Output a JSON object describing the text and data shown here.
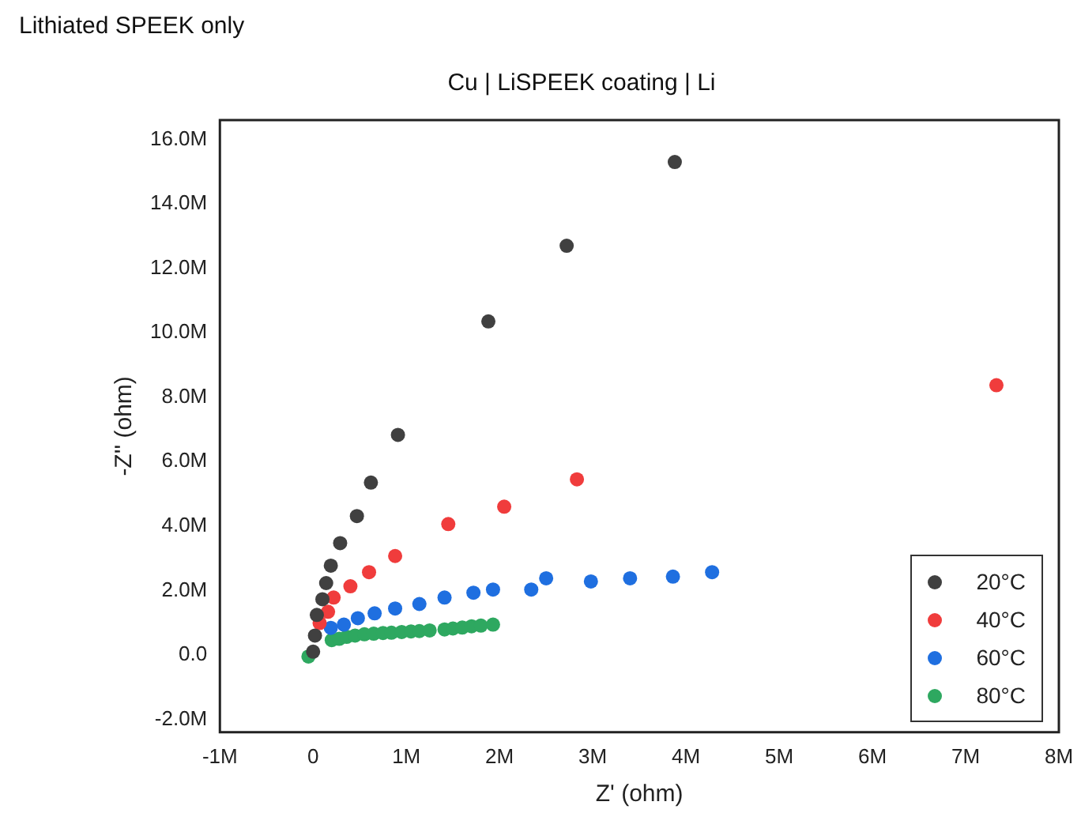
{
  "chart_data": {
    "type": "scatter",
    "title": "Cu | LiSPEEK coating | Li",
    "annotations": [
      "Lithiated SPEEK only"
    ],
    "xlabel": "Z' (ohm)",
    "ylabel": "-Z'' (ohm)",
    "xlim": [
      -1000000,
      8000000
    ],
    "ylim": [
      -2400000,
      16600000
    ],
    "xticks": [
      {
        "value": -1000000,
        "label": "-1M"
      },
      {
        "value": 0,
        "label": "0"
      },
      {
        "value": 1000000,
        "label": "1M"
      },
      {
        "value": 2000000,
        "label": "2M"
      },
      {
        "value": 3000000,
        "label": "3M"
      },
      {
        "value": 4000000,
        "label": "4M"
      },
      {
        "value": 5000000,
        "label": "5M"
      },
      {
        "value": 6000000,
        "label": "6M"
      },
      {
        "value": 7000000,
        "label": "7M"
      },
      {
        "value": 8000000,
        "label": "8M"
      }
    ],
    "yticks": [
      {
        "value": -2000000,
        "label": "-2.0M"
      },
      {
        "value": 0,
        "label": "0.0"
      },
      {
        "value": 2000000,
        "label": "2.0M"
      },
      {
        "value": 4000000,
        "label": "4.0M"
      },
      {
        "value": 6000000,
        "label": "6.0M"
      },
      {
        "value": 8000000,
        "label": "8.0M"
      },
      {
        "value": 10000000,
        "label": "10.0M"
      },
      {
        "value": 12000000,
        "label": "12.0M"
      },
      {
        "value": 14000000,
        "label": "14.0M"
      },
      {
        "value": 16000000,
        "label": "16.0M"
      }
    ],
    "grid": false,
    "legend": "bottom right",
    "marker": "circle",
    "series": [
      {
        "name": "20°C",
        "color": "#404040",
        "x": [
          0,
          20000,
          40000,
          100000,
          140000,
          190000,
          290000,
          470000,
          620000,
          910000,
          1880000,
          2720000,
          3880000
        ],
        "values": [
          100000,
          600000,
          1240000,
          1730000,
          2230000,
          2770000,
          3470000,
          4310000,
          5350000,
          6830000,
          10350000,
          12700000,
          15300000
        ]
      },
      {
        "name": "40°C",
        "color": "#f03c3c",
        "x": [
          70000,
          160000,
          220000,
          400000,
          600000,
          880000,
          1450000,
          2050000,
          2830000,
          7330000
        ],
        "values": [
          990000,
          1340000,
          1780000,
          2130000,
          2570000,
          3070000,
          4060000,
          4600000,
          5450000,
          8370000
        ]
      },
      {
        "name": "60°C",
        "color": "#1f6fe0",
        "x": [
          190000,
          330000,
          480000,
          660000,
          880000,
          1140000,
          1410000,
          1720000,
          1930000,
          2340000,
          2500000,
          2980000,
          3400000,
          3860000,
          4280000
        ],
        "values": [
          840000,
          940000,
          1140000,
          1290000,
          1440000,
          1580000,
          1780000,
          1930000,
          2030000,
          2030000,
          2380000,
          2280000,
          2380000,
          2430000,
          2570000
        ]
      },
      {
        "name": "80°C",
        "color": "#2ea860",
        "x": [
          -50000,
          200000,
          280000,
          360000,
          450000,
          550000,
          650000,
          750000,
          840000,
          950000,
          1050000,
          1140000,
          1250000,
          1410000,
          1500000,
          1600000,
          1700000,
          1800000,
          1930000
        ],
        "values": [
          -50000,
          460000,
          500000,
          560000,
          600000,
          640000,
          660000,
          680000,
          690000,
          710000,
          730000,
          740000,
          760000,
          790000,
          820000,
          850000,
          890000,
          910000,
          940000
        ]
      }
    ]
  }
}
